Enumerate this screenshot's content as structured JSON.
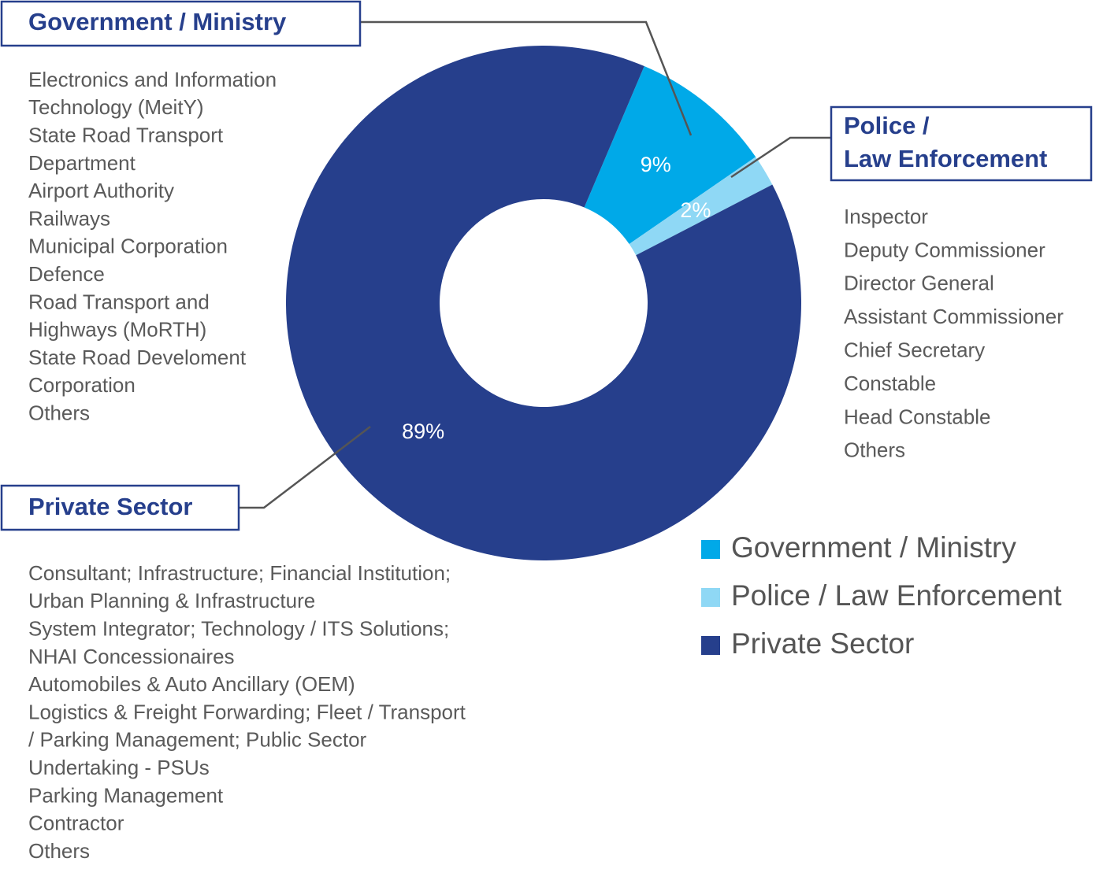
{
  "chart_data": {
    "type": "donut",
    "categories": [
      "Government / Ministry",
      "Police / Law Enforcement",
      "Private Sector"
    ],
    "values": [
      9,
      2,
      89
    ],
    "value_labels": [
      "9%",
      "2%",
      "89%"
    ],
    "colors": [
      "#00a9e8",
      "#8fd8f5",
      "#263f8c"
    ],
    "legend": "bottom-right"
  },
  "callouts": [
    {
      "title": [
        "Government / Ministry"
      ],
      "items": [
        "Electronics and Information",
        "Technology (MeitY)",
        "State Road Transport",
        "Department",
        "Airport Authority",
        "Railways",
        "Municipal Corporation",
        "Defence",
        "Road Transport and",
        "Highways (MoRTH)",
        "State Road Develoment",
        "Corporation",
        "Others"
      ]
    },
    {
      "title": [
        "Police /",
        "Law Enforcement"
      ],
      "items": [
        "Inspector",
        "Deputy Commissioner",
        "Director General",
        "Assistant Commissioner",
        "Chief Secretary",
        "Constable",
        "Head Constable",
        "Others"
      ]
    },
    {
      "title": [
        "Private Sector"
      ],
      "items": [
        "Consultant; Infrastructure; Financial Institution;",
        "Urban Planning & Infrastructure",
        "System Integrator; Technology / ITS Solutions;",
        "NHAI Concessionaires",
        "Automobiles & Auto Ancillary (OEM)",
        "Logistics & Freight Forwarding; Fleet / Transport",
        "/ Parking Management; Public Sector",
        "Undertaking - PSUs",
        "Parking Management",
        "Contractor",
        "Others"
      ]
    }
  ]
}
